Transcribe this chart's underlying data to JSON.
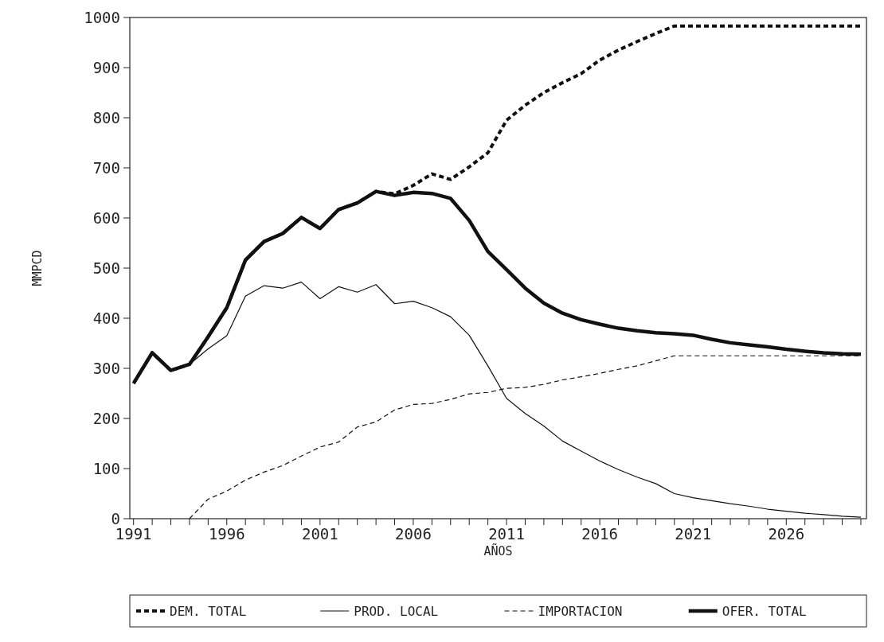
{
  "chart_data": {
    "type": "line",
    "xlabel": "AÑOS",
    "ylabel": "MMPCD",
    "x": [
      1991,
      1992,
      1993,
      1994,
      1995,
      1996,
      1997,
      1998,
      1999,
      2000,
      2001,
      2002,
      2003,
      2004,
      2005,
      2006,
      2007,
      2008,
      2009,
      2010,
      2011,
      2012,
      2013,
      2014,
      2015,
      2016,
      2017,
      2018,
      2019,
      2020,
      2021,
      2022,
      2023,
      2024,
      2025,
      2026,
      2027,
      2028,
      2029,
      2030
    ],
    "series": [
      {
        "name": "DEM. TOTAL",
        "color": "#111111",
        "line_style": "dashed",
        "values": [
          270,
          331,
          296,
          308,
          363,
          421,
          516,
          553,
          569,
          601,
          579,
          617,
          630,
          653,
          648,
          665,
          688,
          677,
          702,
          730,
          795,
          825,
          850,
          870,
          888,
          915,
          935,
          952,
          968,
          983,
          983,
          983,
          983,
          983,
          983,
          983,
          983,
          983,
          983,
          983
        ]
      },
      {
        "name": "PROD. LOCAL",
        "color": "#111111",
        "line_style": "solid",
        "values": [
          270,
          331,
          296,
          308,
          339,
          365,
          444,
          465,
          460,
          472,
          439,
          463,
          452,
          467,
          429,
          434,
          421,
          403,
          366,
          305,
          240,
          210,
          185,
          155,
          135,
          115,
          98,
          83,
          70,
          50,
          42,
          36,
          30,
          25,
          19,
          15,
          11,
          8,
          5,
          3
        ]
      },
      {
        "name": "IMPORTACION",
        "color": "#111111",
        "line_style": "dashed",
        "values": [
          null,
          null,
          null,
          0,
          39,
          55,
          77,
          93,
          106,
          125,
          143,
          153,
          183,
          193,
          217,
          228,
          230,
          238,
          249,
          252,
          260,
          262,
          268,
          277,
          283,
          290,
          298,
          305,
          315,
          325,
          325,
          325,
          325,
          325,
          325,
          325,
          325,
          325,
          325,
          325
        ]
      },
      {
        "name": "OFER. TOTAL",
        "color": "#111111",
        "line_style": "solid",
        "values": [
          270,
          331,
          296,
          308,
          363,
          421,
          516,
          553,
          569,
          601,
          579,
          617,
          630,
          653,
          645,
          651,
          649,
          639,
          595,
          533,
          497,
          460,
          430,
          410,
          397,
          388,
          380,
          375,
          371,
          369,
          366,
          358,
          351,
          347,
          343,
          338,
          334,
          331,
          329,
          328
        ]
      }
    ],
    "xlim": [
      1990.8,
      2030.3
    ],
    "xticks": [
      1991,
      {
        "value": 1992,
        "label": null
      },
      {
        "value": 1993,
        "label": null
      },
      {
        "value": 1994,
        "label": null
      },
      {
        "value": 1995,
        "label": null
      },
      1996,
      {
        "value": 1997,
        "label": null
      },
      {
        "value": 1998,
        "label": null
      },
      {
        "value": 1999,
        "label": null
      },
      {
        "value": 2000,
        "label": null
      },
      2001,
      {
        "value": 2002,
        "label": null
      },
      {
        "value": 2003,
        "label": null
      },
      {
        "value": 2004,
        "label": null
      },
      {
        "value": 2005,
        "label": null
      },
      2006,
      {
        "value": 2007,
        "label": null
      },
      {
        "value": 2008,
        "label": null
      },
      {
        "value": 2009,
        "label": null
      },
      {
        "value": 2010,
        "label": null
      },
      2011,
      {
        "value": 2012,
        "label": null
      },
      {
        "value": 2013,
        "label": null
      },
      {
        "value": 2014,
        "label": null
      },
      {
        "value": 2015,
        "label": null
      },
      2016,
      {
        "value": 2017,
        "label": null
      },
      {
        "value": 2018,
        "label": null
      },
      {
        "value": 2019,
        "label": null
      },
      {
        "value": 2020,
        "label": null
      },
      2021,
      {
        "value": 2022,
        "label": null
      },
      {
        "value": 2023,
        "label": null
      },
      {
        "value": 2024,
        "label": null
      },
      {
        "value": 2025,
        "label": null
      },
      2026,
      {
        "value": 2027,
        "label": null
      },
      {
        "value": 2028,
        "label": null
      },
      {
        "value": 2029,
        "label": null
      },
      {
        "value": 2030,
        "label": null
      }
    ],
    "ylim": [
      0,
      1000
    ],
    "yticks": [
      0,
      100,
      200,
      300,
      400,
      500,
      600,
      700,
      800,
      900,
      1000
    ],
    "grid": false,
    "legend": "bottom"
  }
}
